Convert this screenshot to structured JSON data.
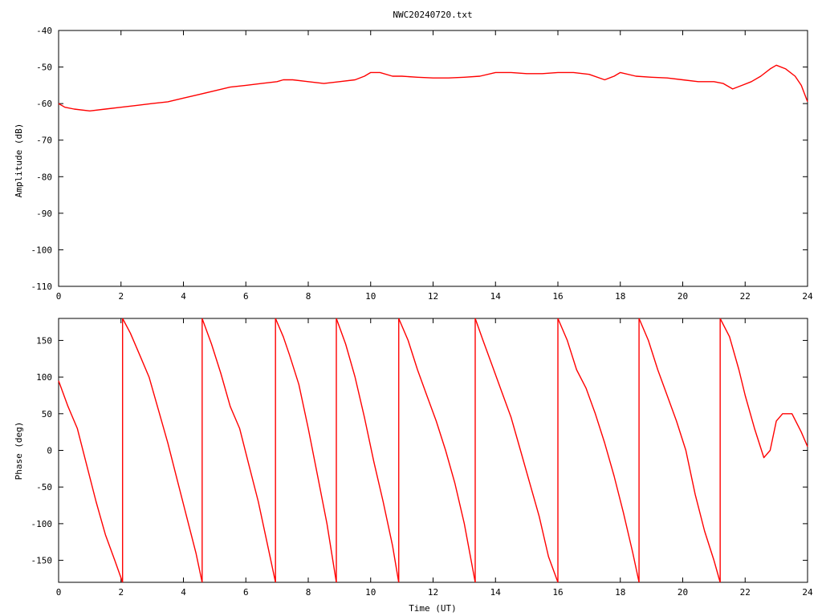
{
  "title": "NWC20240720.txt",
  "colors": {
    "series": "#ff0000",
    "axis": "#000000",
    "background": "#ffffff"
  },
  "chart_data": [
    {
      "type": "line",
      "title": "NWC20240720.txt",
      "xlabel": "",
      "ylabel": "Amplitude (dB)",
      "xlim": [
        0,
        24
      ],
      "ylim": [
        -110,
        -40
      ],
      "xticks": [
        "0",
        "2",
        "4",
        "6",
        "8",
        "10",
        "12",
        "14",
        "16",
        "18",
        "20",
        "22",
        "24"
      ],
      "yticks": [
        "-40",
        "-50",
        "-60",
        "-70",
        "-80",
        "-90",
        "-100",
        "-110"
      ],
      "grid": false,
      "series": [
        {
          "x": [
            0,
            0.2,
            0.5,
            1.0,
            1.5,
            2.0,
            2.5,
            3.0,
            3.5,
            4.0,
            4.5,
            5.0,
            5.5,
            6.0,
            6.5,
            7.0,
            7.2,
            7.5,
            8.0,
            8.5,
            9.0,
            9.5,
            9.8,
            10.0,
            10.3,
            10.7,
            11.0,
            11.5,
            12.0,
            12.5,
            13.0,
            13.5,
            14.0,
            14.5,
            15.0,
            15.5,
            16.0,
            16.5,
            17.0,
            17.5,
            17.8,
            18.0,
            18.5,
            19.0,
            19.5,
            20.0,
            20.5,
            21.0,
            21.3,
            21.6,
            21.9,
            22.2,
            22.5,
            22.8,
            23.0,
            23.3,
            23.6,
            23.8,
            24.0
          ],
          "values": [
            -60.0,
            -61.0,
            -61.5,
            -62.0,
            -61.5,
            -61.0,
            -60.5,
            -60.0,
            -59.5,
            -58.5,
            -57.5,
            -56.5,
            -55.5,
            -55.0,
            -54.5,
            -54.0,
            -53.5,
            -53.5,
            -54.0,
            -54.5,
            -54.0,
            -53.5,
            -52.5,
            -51.5,
            -51.5,
            -52.5,
            -52.5,
            -52.8,
            -53.0,
            -53.0,
            -52.8,
            -52.5,
            -51.5,
            -51.5,
            -51.8,
            -51.8,
            -51.5,
            -51.5,
            -52.0,
            -53.5,
            -52.5,
            -51.5,
            -52.5,
            -52.8,
            -53.0,
            -53.5,
            -54.0,
            -54.0,
            -54.5,
            -56.0,
            -55.0,
            -54.0,
            -52.5,
            -50.5,
            -49.5,
            -50.5,
            -52.5,
            -55.0,
            -59.5
          ]
        }
      ]
    },
    {
      "type": "line",
      "title": "",
      "xlabel": "Time (UT)",
      "ylabel": "Phase (deg)",
      "xlim": [
        0,
        24
      ],
      "ylim": [
        -180,
        180
      ],
      "xticks": [
        "0",
        "2",
        "4",
        "6",
        "8",
        "10",
        "12",
        "14",
        "16",
        "18",
        "20",
        "22",
        "24"
      ],
      "yticks": [
        "150",
        "100",
        "50",
        "0",
        "-50",
        "-100",
        "-150"
      ],
      "grid": false,
      "series": [
        {
          "segments": [
            {
              "x": [
                0,
                0.3,
                0.6,
                0.9,
                1.2,
                1.5,
                1.8,
                2.05
              ],
              "values": [
                95,
                60,
                30,
                -20,
                -70,
                -115,
                -150,
                -180
              ]
            },
            {
              "x": [
                2.05,
                2.3,
                2.6,
                2.9,
                3.2,
                3.5,
                3.8,
                4.1,
                4.4,
                4.6
              ],
              "values": [
                180,
                160,
                130,
                100,
                55,
                10,
                -40,
                -90,
                -140,
                -180
              ]
            },
            {
              "x": [
                4.6,
                4.9,
                5.2,
                5.5,
                5.8,
                6.1,
                6.4,
                6.7,
                6.95
              ],
              "values": [
                180,
                145,
                105,
                60,
                30,
                -20,
                -70,
                -130,
                -180
              ]
            },
            {
              "x": [
                6.95,
                7.2,
                7.4,
                7.7,
                8.0,
                8.3,
                8.6,
                8.9
              ],
              "values": [
                180,
                155,
                130,
                90,
                30,
                -35,
                -100,
                -180
              ]
            },
            {
              "x": [
                8.9,
                9.2,
                9.5,
                9.8,
                10.1,
                10.4,
                10.7,
                10.9
              ],
              "values": [
                180,
                145,
                100,
                45,
                -15,
                -70,
                -130,
                -180
              ]
            },
            {
              "x": [
                10.9,
                11.2,
                11.5,
                11.8,
                12.1,
                12.4,
                12.7,
                13.0,
                13.35
              ],
              "values": [
                180,
                150,
                110,
                75,
                40,
                0,
                -45,
                -100,
                -180
              ]
            },
            {
              "x": [
                13.35,
                13.6,
                13.9,
                14.2,
                14.5,
                14.8,
                15.1,
                15.4,
                15.7,
                16.0
              ],
              "values": [
                180,
                150,
                115,
                80,
                45,
                0,
                -45,
                -90,
                -145,
                -180
              ]
            },
            {
              "x": [
                16.0,
                16.3,
                16.6,
                16.9,
                17.2,
                17.5,
                17.8,
                18.1,
                18.4,
                18.6
              ],
              "values": [
                180,
                150,
                110,
                85,
                50,
                10,
                -35,
                -85,
                -140,
                -180
              ]
            },
            {
              "x": [
                18.6,
                18.9,
                19.2,
                19.5,
                19.8,
                20.1,
                20.4,
                20.7,
                21.0,
                21.2
              ],
              "values": [
                180,
                150,
                110,
                75,
                40,
                0,
                -60,
                -110,
                -150,
                -180
              ]
            },
            {
              "x": [
                21.2,
                21.5,
                21.8,
                22.0,
                22.3,
                22.6,
                22.8,
                23.0,
                23.2,
                23.5,
                23.8,
                24.0
              ],
              "values": [
                180,
                155,
                110,
                75,
                30,
                -10,
                0,
                40,
                50,
                50,
                25,
                5
              ]
            }
          ],
          "wraps": [
            2.05,
            4.6,
            6.95,
            8.9,
            10.9,
            13.35,
            16.0,
            18.6,
            21.2
          ]
        }
      ]
    }
  ]
}
